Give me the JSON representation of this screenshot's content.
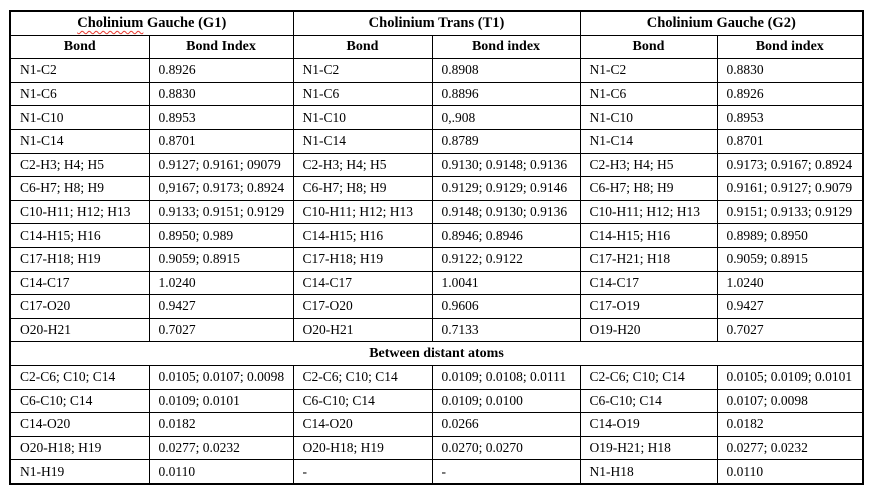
{
  "table": {
    "groups": [
      {
        "name_word": "Cholinium",
        "name_rest": " Gauche (G1)",
        "misspell_underline": true,
        "bond_header": "Bond",
        "index_header": "Bond Index"
      },
      {
        "name_word": "Cholinium",
        "name_rest": " Trans (T1)",
        "misspell_underline": false,
        "bond_header": "Bond",
        "index_header": "Bond index"
      },
      {
        "name_word": "Cholinium",
        "name_rest": " Gauche (G2)",
        "misspell_underline": false,
        "bond_header": "Bond",
        "index_header": "Bond index"
      }
    ],
    "rows_bonded": [
      [
        "N1-C2",
        "0.8926",
        "N1-C2",
        "0.8908",
        "N1-C2",
        "0.8830"
      ],
      [
        "N1-C6",
        "0.8830",
        "N1-C6",
        "0.8896",
        "N1-C6",
        "0.8926"
      ],
      [
        "N1-C10",
        "0.8953",
        "N1-C10",
        "0,.908",
        "N1-C10",
        "0.8953"
      ],
      [
        "N1-C14",
        "0.8701",
        "N1-C14",
        "0.8789",
        "N1-C14",
        "0.8701"
      ],
      [
        "C2-H3; H4; H5",
        "0.9127; 0.9161; 09079",
        "C2-H3; H4; H5",
        "0.9130; 0.9148; 0.9136",
        "C2-H3; H4; H5",
        "0.9173; 0.9167; 0.8924"
      ],
      [
        "C6-H7; H8; H9",
        "0,9167; 0.9173; 0.8924",
        "C6-H7; H8; H9",
        "0.9129; 0.9129; 0.9146",
        "C6-H7; H8; H9",
        "0.9161; 0.9127; 0.9079"
      ],
      [
        "C10-H11; H12; H13",
        "0.9133; 0.9151; 0.9129",
        "C10-H11; H12; H13",
        "0.9148; 0.9130; 0.9136",
        "C10-H11; H12; H13",
        "0.9151; 0.9133; 0.9129"
      ],
      [
        "C14-H15; H16",
        "0.8950; 0.989",
        "C14-H15; H16",
        "0.8946; 0.8946",
        "C14-H15; H16",
        "0.8989; 0.8950"
      ],
      [
        "C17-H18; H19",
        "0.9059; 0.8915",
        "C17-H18; H19",
        "0.9122; 0.9122",
        "C17-H21; H18",
        "0.9059; 0.8915"
      ],
      [
        "C14-C17",
        "1.0240",
        "C14-C17",
        "1.0041",
        "C14-C17",
        "1.0240"
      ],
      [
        "C17-O20",
        "0.9427",
        "C17-O20",
        "0.9606",
        "C17-O19",
        "0.9427"
      ],
      [
        "O20-H21",
        "0.7027",
        "O20-H21",
        "0.7133",
        "O19-H20",
        "0.7027"
      ]
    ],
    "section_divider": "Between distant atoms",
    "rows_distant": [
      [
        "C2-C6; C10; C14",
        "0.0105; 0.0107; 0.0098",
        "C2-C6; C10; C14",
        "0.0109; 0.0108; 0.0111",
        "C2-C6; C10; C14",
        "0.0105; 0.0109; 0.0101"
      ],
      [
        "C6-C10; C14",
        "0.0109; 0.0101",
        "C6-C10; C14",
        "0.0109; 0.0100",
        "C6-C10; C14",
        "0.0107; 0.0098"
      ],
      [
        "C14-O20",
        "0.0182",
        "C14-O20",
        "0.0266",
        "C14-O19",
        "0.0182"
      ],
      [
        "O20-H18; H19",
        "0.0277; 0.0232",
        "O20-H18; H19",
        "0.0270; 0.0270",
        "O19-H21; H18",
        "0.0277; 0.0232"
      ],
      [
        "N1-H19",
        "0.0110",
        "-",
        "-",
        "N1-H18",
        "0.0110"
      ]
    ]
  }
}
